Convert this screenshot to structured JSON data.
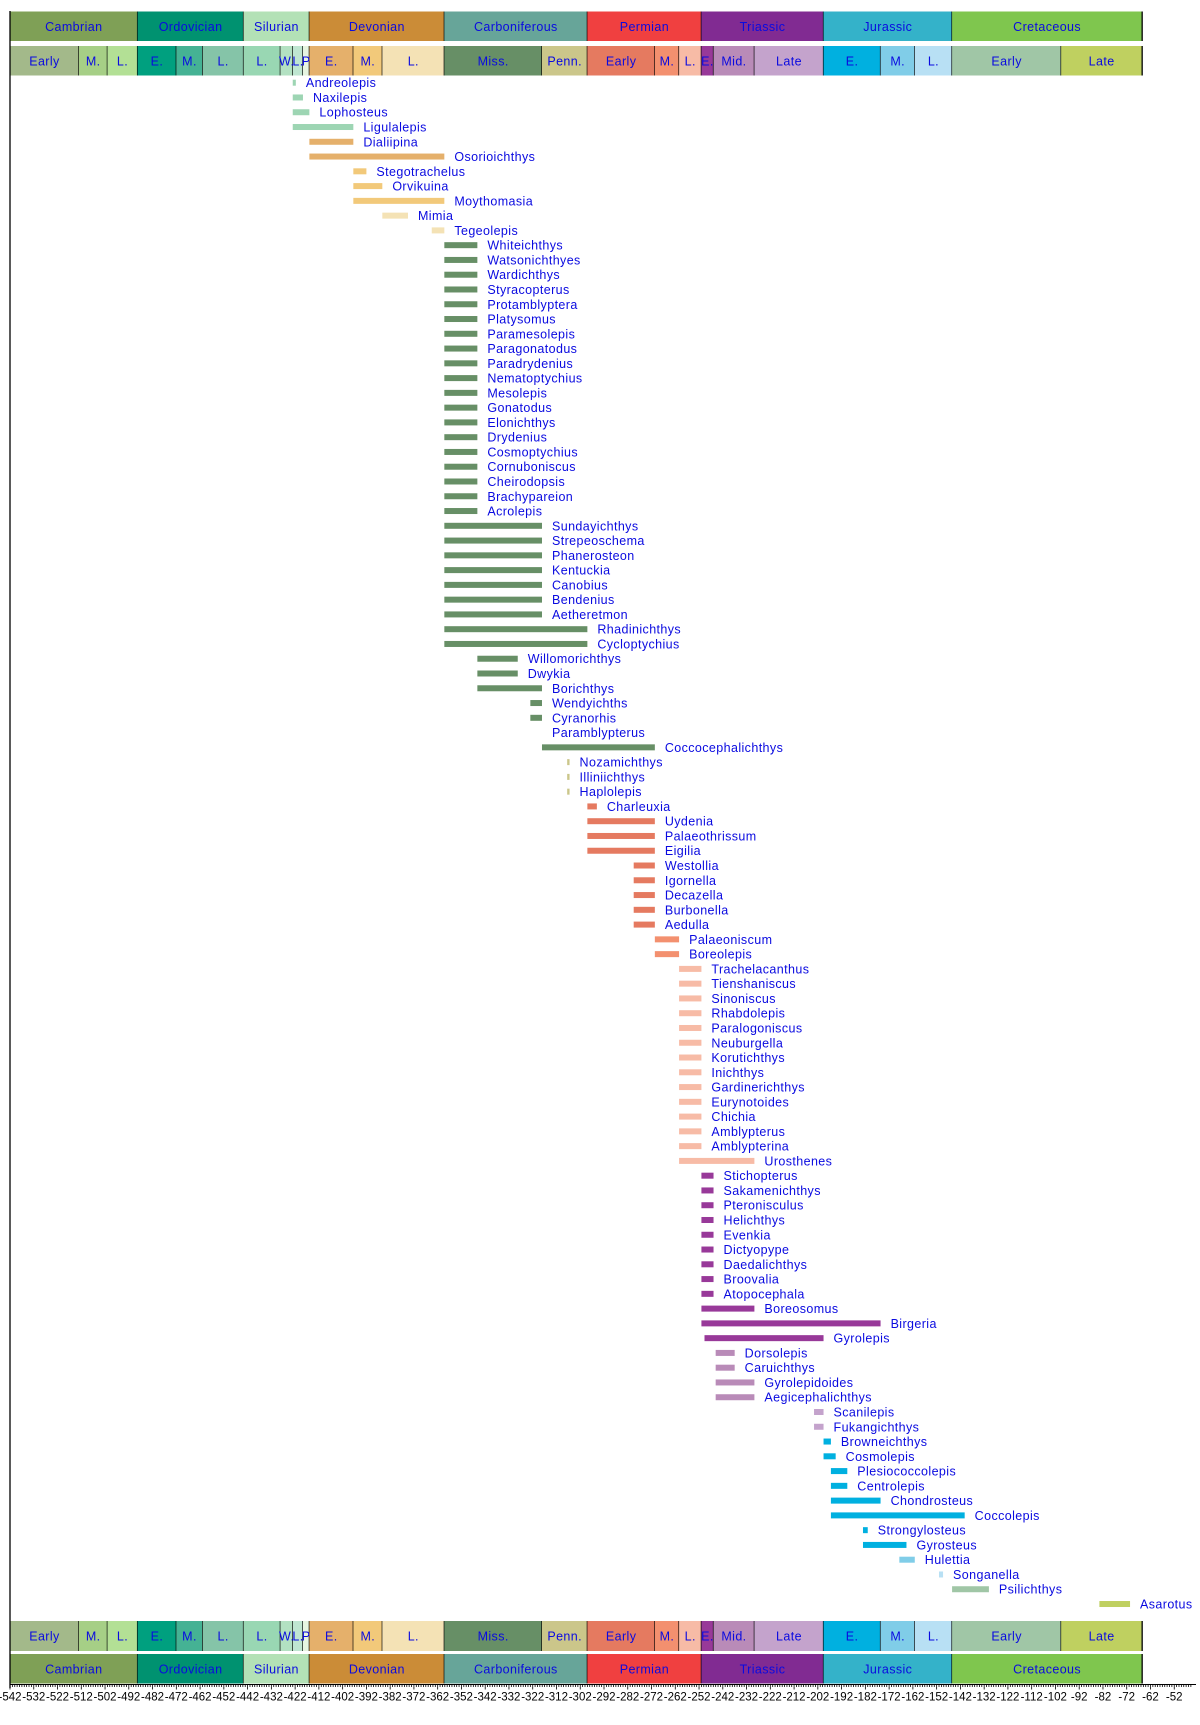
{
  "chart_data": {
    "type": "range",
    "orientation": "horizontal",
    "xlim": [
      -542,
      -45
    ],
    "x_ticks": [
      -542,
      -532,
      -522,
      -512,
      -502,
      -492,
      -482,
      -472,
      -462,
      -452,
      -442,
      -432,
      -422,
      -412,
      -402,
      -392,
      -382,
      -372,
      -362,
      -352,
      -342,
      -332,
      -322,
      -312,
      -302,
      -292,
      -282,
      -272,
      -262,
      -252,
      -242,
      -232,
      -222,
      -212,
      -202,
      -192,
      -182,
      -172,
      -162,
      -152,
      -142,
      -132,
      -122,
      -112,
      -102,
      -92,
      -82,
      -72,
      -62,
      -52
    ],
    "label_color": "#0a0ae0",
    "periods": [
      {
        "name": "Cambrian",
        "start": -542,
        "end": -488.3,
        "color": "#7fa056"
      },
      {
        "name": "Ordovician",
        "start": -488.3,
        "end": -443.7,
        "color": "#009270"
      },
      {
        "name": "Silurian",
        "start": -443.7,
        "end": -416,
        "color": "#b3e1b6"
      },
      {
        "name": "Devonian",
        "start": -416,
        "end": -359.2,
        "color": "#cb8c37"
      },
      {
        "name": "Carboniferous",
        "start": -359.2,
        "end": -299,
        "color": "#67a599"
      },
      {
        "name": "Permian",
        "start": -299,
        "end": -251,
        "color": "#f04040"
      },
      {
        "name": "Triassic",
        "start": -251,
        "end": -199.6,
        "color": "#812b92"
      },
      {
        "name": "Jurassic",
        "start": -199.6,
        "end": -145.5,
        "color": "#34b2c9"
      },
      {
        "name": "Cretaceous",
        "start": -145.5,
        "end": -65.5,
        "color": "#7fc64e"
      }
    ],
    "epochs": [
      {
        "name": "Early",
        "start": -542,
        "end": -513,
        "color": "#a3b98a"
      },
      {
        "name": "M.",
        "start": -513,
        "end": -501,
        "color": "#a6cf86"
      },
      {
        "name": "L.",
        "start": -501,
        "end": -488.3,
        "color": "#b3e095"
      },
      {
        "name": "E.",
        "start": -488.3,
        "end": -472,
        "color": "#00a07f"
      },
      {
        "name": "M.",
        "start": -472,
        "end": -460.9,
        "color": "#45b294"
      },
      {
        "name": "L.",
        "start": -460.9,
        "end": -443.7,
        "color": "#85c4a8"
      },
      {
        "name": "L.",
        "start": -443.7,
        "end": -428.2,
        "color": "#99d7b3"
      },
      {
        "name": "W.",
        "start": -428.2,
        "end": -422.9,
        "color": "#b3e1c2"
      },
      {
        "name": "L.",
        "start": -422.9,
        "end": -418.7,
        "color": "#bfe6d1"
      },
      {
        "name": "P",
        "start": -418.7,
        "end": -416,
        "color": "#e6f5e1"
      },
      {
        "name": "E.",
        "start": -416,
        "end": -397.5,
        "color": "#e5b06b"
      },
      {
        "name": "M.",
        "start": -397.5,
        "end": -385.3,
        "color": "#f2c97a"
      },
      {
        "name": "L.",
        "start": -385.3,
        "end": -359.2,
        "color": "#f4e2b5"
      },
      {
        "name": "Miss.",
        "start": -359.2,
        "end": -318.1,
        "color": "#678f66"
      },
      {
        "name": "Penn.",
        "start": -318.1,
        "end": -299,
        "color": "#cbc68a"
      },
      {
        "name": "Early",
        "start": -299,
        "end": -270.6,
        "color": "#e57a60"
      },
      {
        "name": "M.",
        "start": -270.6,
        "end": -260.4,
        "color": "#f3906f"
      },
      {
        "name": "L.",
        "start": -260.4,
        "end": -251,
        "color": "#f7bba6"
      },
      {
        "name": "E.",
        "start": -251,
        "end": -245.9,
        "color": "#983999"
      },
      {
        "name": "Mid.",
        "start": -245.9,
        "end": -228.7,
        "color": "#b98bb8"
      },
      {
        "name": "Late",
        "start": -228.7,
        "end": -199.6,
        "color": "#c4a3cc"
      },
      {
        "name": "E.",
        "start": -199.6,
        "end": -175.6,
        "color": "#00b0e0"
      },
      {
        "name": "M.",
        "start": -175.6,
        "end": -161.2,
        "color": "#80cde8"
      },
      {
        "name": "L.",
        "start": -161.2,
        "end": -145.5,
        "color": "#b8e0f4"
      },
      {
        "name": "Early",
        "start": -145.5,
        "end": -99.6,
        "color": "#a0c6a6"
      },
      {
        "name": "Late",
        "start": -99.6,
        "end": -65.5,
        "color": "#bfd060"
      }
    ],
    "taxa": [
      {
        "name": "Andreolepis",
        "start": -423,
        "end": -421.7,
        "color": "#9dd5b3"
      },
      {
        "name": "Naxilepis",
        "start": -423,
        "end": -418.7,
        "color": "#9dd5b3"
      },
      {
        "name": "Lophosteus",
        "start": -423,
        "end": -416,
        "color": "#9dd5b3"
      },
      {
        "name": "Ligulalepis",
        "start": -423,
        "end": -397.5,
        "color": "#9dd5b3"
      },
      {
        "name": "Dialiipina",
        "start": -416,
        "end": -397.5,
        "color": "#e5b06b"
      },
      {
        "name": "Osorioichthys",
        "start": -416,
        "end": -359.2,
        "color": "#e5b06b"
      },
      {
        "name": "Stegotrachelus",
        "start": -397.5,
        "end": -392,
        "color": "#f2c97a"
      },
      {
        "name": "Orvikuina",
        "start": -397.5,
        "end": -385.3,
        "color": "#f2c97a"
      },
      {
        "name": "Moythomasia",
        "start": -397.5,
        "end": -359.2,
        "color": "#f2c97a"
      },
      {
        "name": "Mimia",
        "start": -385.3,
        "end": -374.5,
        "color": "#f4e2b5"
      },
      {
        "name": "Tegeolepis",
        "start": -364.5,
        "end": -359.2,
        "color": "#f4e2b5"
      },
      {
        "name": "Whiteichthys",
        "start": -359.2,
        "end": -345.3,
        "color": "#678f66"
      },
      {
        "name": "Watsonichthyes",
        "start": -359.2,
        "end": -345.3,
        "color": "#678f66"
      },
      {
        "name": "Wardichthys",
        "start": -359.2,
        "end": -345.3,
        "color": "#678f66"
      },
      {
        "name": "Styracopterus",
        "start": -359.2,
        "end": -345.3,
        "color": "#678f66"
      },
      {
        "name": "Protamblyptera",
        "start": -359.2,
        "end": -345.3,
        "color": "#678f66"
      },
      {
        "name": "Platysomus",
        "start": -359.2,
        "end": -345.3,
        "color": "#678f66"
      },
      {
        "name": "Paramesolepis",
        "start": -359.2,
        "end": -345.3,
        "color": "#678f66"
      },
      {
        "name": "Paragonatodus",
        "start": -359.2,
        "end": -345.3,
        "color": "#678f66"
      },
      {
        "name": "Paradrydenius",
        "start": -359.2,
        "end": -345.3,
        "color": "#678f66"
      },
      {
        "name": "Nematoptychius",
        "start": -359.2,
        "end": -345.3,
        "color": "#678f66"
      },
      {
        "name": "Mesolepis",
        "start": -359.2,
        "end": -345.3,
        "color": "#678f66"
      },
      {
        "name": "Gonatodus",
        "start": -359.2,
        "end": -345.3,
        "color": "#678f66"
      },
      {
        "name": "Elonichthys",
        "start": -359.2,
        "end": -345.3,
        "color": "#678f66"
      },
      {
        "name": "Drydenius",
        "start": -359.2,
        "end": -345.3,
        "color": "#678f66"
      },
      {
        "name": "Cosmoptychius",
        "start": -359.2,
        "end": -345.3,
        "color": "#678f66"
      },
      {
        "name": "Cornuboniscus",
        "start": -359.2,
        "end": -345.3,
        "color": "#678f66"
      },
      {
        "name": "Cheirodopsis",
        "start": -359.2,
        "end": -345.3,
        "color": "#678f66"
      },
      {
        "name": "Brachypareion",
        "start": -359.2,
        "end": -345.3,
        "color": "#678f66"
      },
      {
        "name": "Acrolepis",
        "start": -359.2,
        "end": -345.3,
        "color": "#678f66"
      },
      {
        "name": "Sundayichthys",
        "start": -359.2,
        "end": -318.1,
        "color": "#678f66"
      },
      {
        "name": "Strepeoschema",
        "start": -359.2,
        "end": -318.1,
        "color": "#678f66"
      },
      {
        "name": "Phanerosteon",
        "start": -359.2,
        "end": -318.1,
        "color": "#678f66"
      },
      {
        "name": "Kentuckia",
        "start": -359.2,
        "end": -318.1,
        "color": "#678f66"
      },
      {
        "name": "Canobius",
        "start": -359.2,
        "end": -318.1,
        "color": "#678f66"
      },
      {
        "name": "Bendenius",
        "start": -359.2,
        "end": -318.1,
        "color": "#678f66"
      },
      {
        "name": "Aetheretmon",
        "start": -359.2,
        "end": -318.1,
        "color": "#678f66"
      },
      {
        "name": "Rhadinichthys",
        "start": -359.2,
        "end": -299,
        "color": "#678f66"
      },
      {
        "name": "Cycloptychius",
        "start": -359.2,
        "end": -299,
        "color": "#678f66"
      },
      {
        "name": "Willomorichthys",
        "start": -345.3,
        "end": -328.3,
        "color": "#678f66"
      },
      {
        "name": "Dwykia",
        "start": -345.3,
        "end": -328.3,
        "color": "#678f66"
      },
      {
        "name": "Borichthys",
        "start": -345.3,
        "end": -318.1,
        "color": "#678f66"
      },
      {
        "name": "Wendyichths",
        "start": -323,
        "end": -318.1,
        "color": "#678f66"
      },
      {
        "name": "Cyranorhis",
        "start": -323,
        "end": -318.1,
        "color": "#678f66"
      },
      {
        "name": "Paramblypterus",
        "start": -318.1,
        "end": -318.1,
        "color": "#678f66"
      },
      {
        "name": "Coccocephalichthys",
        "start": -318.1,
        "end": -270.6,
        "color": "#678f66"
      },
      {
        "name": "Nozamichthys",
        "start": -307.5,
        "end": -306.5,
        "color": "#cbc68a"
      },
      {
        "name": "Illiniichthys",
        "start": -307.5,
        "end": -306.5,
        "color": "#cbc68a"
      },
      {
        "name": "Haplolepis",
        "start": -307.5,
        "end": -306.5,
        "color": "#cbc68a"
      },
      {
        "name": "Charleuxia",
        "start": -299,
        "end": -295,
        "color": "#e57a60"
      },
      {
        "name": "Uydenia",
        "start": -299,
        "end": -270.6,
        "color": "#e57a60"
      },
      {
        "name": "Palaeothrissum",
        "start": -299,
        "end": -270.6,
        "color": "#e57a60"
      },
      {
        "name": "Eigilia",
        "start": -299,
        "end": -270.6,
        "color": "#e57a60"
      },
      {
        "name": "Westollia",
        "start": -279.5,
        "end": -270.6,
        "color": "#e57a60"
      },
      {
        "name": "Igornella",
        "start": -279.5,
        "end": -270.6,
        "color": "#e57a60"
      },
      {
        "name": "Decazella",
        "start": -279.5,
        "end": -270.6,
        "color": "#e57a60"
      },
      {
        "name": "Burbonella",
        "start": -279.5,
        "end": -270.6,
        "color": "#e57a60"
      },
      {
        "name": "Aedulla",
        "start": -279.5,
        "end": -270.6,
        "color": "#e57a60"
      },
      {
        "name": "Palaeoniscum",
        "start": -270.6,
        "end": -260.4,
        "color": "#f3906f"
      },
      {
        "name": "Boreolepis",
        "start": -270.6,
        "end": -260.4,
        "color": "#f3906f"
      },
      {
        "name": "Trachelacanthus",
        "start": -260.4,
        "end": -251,
        "color": "#f7bba6"
      },
      {
        "name": "Tienshaniscus",
        "start": -260.4,
        "end": -251,
        "color": "#f7bba6"
      },
      {
        "name": "Sinoniscus",
        "start": -260.4,
        "end": -251,
        "color": "#f7bba6"
      },
      {
        "name": "Rhabdolepis",
        "start": -260.4,
        "end": -251,
        "color": "#f7bba6"
      },
      {
        "name": "Paralogoniscus",
        "start": -260.4,
        "end": -251,
        "color": "#f7bba6"
      },
      {
        "name": "Neuburgella",
        "start": -260.4,
        "end": -251,
        "color": "#f7bba6"
      },
      {
        "name": "Korutichthys",
        "start": -260.4,
        "end": -251,
        "color": "#f7bba6"
      },
      {
        "name": "Inichthys",
        "start": -260.4,
        "end": -251,
        "color": "#f7bba6"
      },
      {
        "name": "Gardinerichthys",
        "start": -260.4,
        "end": -251,
        "color": "#f7bba6"
      },
      {
        "name": "Eurynotoides",
        "start": -260.4,
        "end": -251,
        "color": "#f7bba6"
      },
      {
        "name": "Chichia",
        "start": -260.4,
        "end": -251,
        "color": "#f7bba6"
      },
      {
        "name": "Amblypterus",
        "start": -260.4,
        "end": -251,
        "color": "#f7bba6"
      },
      {
        "name": "Amblypterina",
        "start": -260.4,
        "end": -251,
        "color": "#f7bba6"
      },
      {
        "name": "Urosthenes",
        "start": -260.4,
        "end": -228.7,
        "color": "#f7bba6"
      },
      {
        "name": "Stichopterus",
        "start": -251,
        "end": -245.9,
        "color": "#983999"
      },
      {
        "name": "Sakamenichthys",
        "start": -251,
        "end": -245.9,
        "color": "#983999"
      },
      {
        "name": "Pteronisculus",
        "start": -251,
        "end": -245.9,
        "color": "#983999"
      },
      {
        "name": "Helichthys",
        "start": -251,
        "end": -245.9,
        "color": "#983999"
      },
      {
        "name": "Evenkia",
        "start": -251,
        "end": -245.9,
        "color": "#983999"
      },
      {
        "name": "Dictyopype",
        "start": -251,
        "end": -245.9,
        "color": "#983999"
      },
      {
        "name": "Daedalichthys",
        "start": -251,
        "end": -245.9,
        "color": "#983999"
      },
      {
        "name": "Broovalia",
        "start": -251,
        "end": -245.9,
        "color": "#983999"
      },
      {
        "name": "Atopocephala",
        "start": -251,
        "end": -245.9,
        "color": "#983999"
      },
      {
        "name": "Boreosomus",
        "start": -251,
        "end": -228.7,
        "color": "#983999"
      },
      {
        "name": "Birgeria",
        "start": -251,
        "end": -175.6,
        "color": "#983999"
      },
      {
        "name": "Gyrolepis",
        "start": -249.7,
        "end": -199.6,
        "color": "#983999"
      },
      {
        "name": "Dorsolepis",
        "start": -245,
        "end": -237,
        "color": "#b98bb8"
      },
      {
        "name": "Caruichthys",
        "start": -245,
        "end": -237,
        "color": "#b98bb8"
      },
      {
        "name": "Gyrolepidoides",
        "start": -245,
        "end": -228.7,
        "color": "#b98bb8"
      },
      {
        "name": "Aegicephalichthys",
        "start": -245,
        "end": -228.7,
        "color": "#b98bb8"
      },
      {
        "name": "Scanilepis",
        "start": -203.6,
        "end": -199.6,
        "color": "#c4a3cc"
      },
      {
        "name": "Fukangichthys",
        "start": -203.6,
        "end": -199.6,
        "color": "#c4a3cc"
      },
      {
        "name": "Browneichthys",
        "start": -199.6,
        "end": -196.5,
        "color": "#00b0e0"
      },
      {
        "name": "Cosmolepis",
        "start": -199.6,
        "end": -194.5,
        "color": "#00b0e0"
      },
      {
        "name": "Plesiococcolepis",
        "start": -196.5,
        "end": -189.6,
        "color": "#00b0e0"
      },
      {
        "name": "Centrolepis",
        "start": -196.5,
        "end": -189.6,
        "color": "#00b0e0"
      },
      {
        "name": "Chondrosteus",
        "start": -196.5,
        "end": -175.6,
        "color": "#00b0e0"
      },
      {
        "name": "Coccolepis",
        "start": -196.5,
        "end": -140.2,
        "color": "#00b0e0"
      },
      {
        "name": "Strongylosteus",
        "start": -183,
        "end": -181,
        "color": "#00b0e0"
      },
      {
        "name": "Gyrosteus",
        "start": -183,
        "end": -164.7,
        "color": "#00b0e0"
      },
      {
        "name": "Hulettia",
        "start": -167.7,
        "end": -161.2,
        "color": "#80cde8"
      },
      {
        "name": "Songanella",
        "start": -151,
        "end": -149.3,
        "color": "#b8e0f4"
      },
      {
        "name": "Psilichthys",
        "start": -145.5,
        "end": -130,
        "color": "#a0c6a6"
      },
      {
        "name": "Asarotus",
        "start": -83.5,
        "end": -70.6,
        "color": "#bfd060"
      }
    ]
  }
}
